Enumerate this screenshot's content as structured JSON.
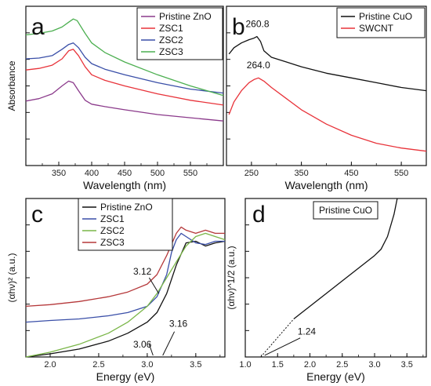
{
  "chart_data": [
    {
      "id": "a",
      "type": "line",
      "panel_label": "a",
      "xlabel": "Wavelength (nm)",
      "ylabel": "Absorbance",
      "xlim": [
        300,
        600
      ],
      "ylim": [
        0,
        1
      ],
      "xticks": [
        350,
        400,
        450,
        500,
        550
      ],
      "y_tick_labels_shown": false,
      "legend_position": "top-right",
      "series": [
        {
          "name": "Pristine ZnO",
          "color": "#8b3a8b",
          "x": [
            300,
            320,
            340,
            355,
            365,
            372,
            380,
            390,
            400,
            420,
            450,
            500,
            550,
            600
          ],
          "y": [
            0.405,
            0.42,
            0.45,
            0.5,
            0.53,
            0.52,
            0.47,
            0.41,
            0.385,
            0.37,
            0.35,
            0.32,
            0.3,
            0.28
          ]
        },
        {
          "name": "ZSC1",
          "color": "#e8333a",
          "x": [
            300,
            320,
            340,
            355,
            365,
            372,
            380,
            390,
            400,
            420,
            450,
            500,
            550,
            600
          ],
          "y": [
            0.6,
            0.61,
            0.63,
            0.67,
            0.72,
            0.73,
            0.69,
            0.62,
            0.57,
            0.535,
            0.5,
            0.45,
            0.41,
            0.38
          ]
        },
        {
          "name": "ZSC2",
          "color": "#3a4fa8",
          "x": [
            300,
            320,
            340,
            355,
            365,
            372,
            380,
            390,
            400,
            420,
            450,
            500,
            550,
            600
          ],
          "y": [
            0.67,
            0.675,
            0.69,
            0.73,
            0.76,
            0.77,
            0.74,
            0.68,
            0.64,
            0.605,
            0.57,
            0.52,
            0.48,
            0.455
          ]
        },
        {
          "name": "ZSC3",
          "color": "#4caf50",
          "x": [
            300,
            320,
            340,
            355,
            365,
            372,
            378,
            390,
            400,
            420,
            450,
            500,
            550,
            600
          ],
          "y": [
            0.82,
            0.83,
            0.845,
            0.87,
            0.9,
            0.92,
            0.91,
            0.83,
            0.77,
            0.71,
            0.65,
            0.57,
            0.5,
            0.44
          ]
        }
      ]
    },
    {
      "id": "b",
      "type": "line",
      "panel_label": "b",
      "xlabel": "Wavelength (nm)",
      "ylabel": "",
      "xlim": [
        200,
        600
      ],
      "ylim": [
        0,
        1
      ],
      "xticks": [
        250,
        350,
        450,
        550
      ],
      "y_tick_labels_shown": false,
      "legend_position": "top-right",
      "annotations": [
        {
          "text": "260.8",
          "x": 262,
          "y": 0.87
        },
        {
          "text": "264.0",
          "x": 264,
          "y": 0.61
        }
      ],
      "series": [
        {
          "name": "Pristine CuO",
          "color": "#111111",
          "x": [
            205,
            215,
            230,
            245,
            255,
            261,
            268,
            275,
            290,
            320,
            350,
            400,
            450,
            500,
            550,
            600
          ],
          "y": [
            0.7,
            0.74,
            0.77,
            0.79,
            0.8,
            0.81,
            0.78,
            0.72,
            0.68,
            0.65,
            0.62,
            0.58,
            0.55,
            0.52,
            0.49,
            0.47
          ]
        },
        {
          "name": "SWCNT",
          "color": "#e8333a",
          "x": [
            205,
            215,
            230,
            245,
            255,
            264,
            275,
            290,
            320,
            350,
            400,
            450,
            500,
            550,
            600
          ],
          "y": [
            0.32,
            0.4,
            0.47,
            0.52,
            0.54,
            0.55,
            0.53,
            0.49,
            0.42,
            0.35,
            0.26,
            0.19,
            0.14,
            0.11,
            0.09
          ]
        }
      ]
    },
    {
      "id": "c",
      "type": "line",
      "panel_label": "c",
      "xlabel": "Energy (eV)",
      "ylabel": "(αhν)² (a.u.)",
      "xlim": [
        1.75,
        3.8
      ],
      "ylim": [
        0,
        1
      ],
      "xticks": [
        2.0,
        2.5,
        3.0,
        3.5
      ],
      "y_tick_labels_shown": false,
      "legend_position": "top-left",
      "annotations": [
        {
          "text": "3.12",
          "x": 2.95,
          "y": 0.52
        },
        {
          "text": "3.06",
          "x": 2.95,
          "y": 0.06
        },
        {
          "text": "3.16",
          "x": 3.32,
          "y": 0.19
        }
      ],
      "series": [
        {
          "name": "Pristine ZnO",
          "color": "#111111",
          "x": [
            1.75,
            2.0,
            2.3,
            2.6,
            2.8,
            3.0,
            3.1,
            3.2,
            3.3,
            3.4,
            3.5,
            3.6,
            3.7,
            3.8
          ],
          "y": [
            0.0,
            0.02,
            0.05,
            0.1,
            0.15,
            0.22,
            0.28,
            0.4,
            0.58,
            0.72,
            0.73,
            0.7,
            0.72,
            0.73
          ]
        },
        {
          "name": "ZSC1",
          "color": "#3a4fa8",
          "x": [
            1.75,
            2.0,
            2.3,
            2.6,
            2.8,
            3.0,
            3.1,
            3.2,
            3.25,
            3.3,
            3.35,
            3.4,
            3.5,
            3.6,
            3.7,
            3.8
          ],
          "y": [
            0.22,
            0.23,
            0.24,
            0.26,
            0.28,
            0.32,
            0.38,
            0.52,
            0.66,
            0.74,
            0.78,
            0.76,
            0.72,
            0.71,
            0.73,
            0.73
          ]
        },
        {
          "name": "ZSC2",
          "color": "#7ab648",
          "x": [
            1.75,
            2.0,
            2.3,
            2.6,
            2.8,
            3.0,
            3.1,
            3.2,
            3.3,
            3.4,
            3.5,
            3.6,
            3.7,
            3.8
          ],
          "y": [
            0.0,
            0.03,
            0.08,
            0.15,
            0.22,
            0.32,
            0.4,
            0.5,
            0.6,
            0.7,
            0.76,
            0.78,
            0.76,
            0.74
          ]
        },
        {
          "name": "ZSC3",
          "color": "#b5383a",
          "x": [
            1.75,
            2.0,
            2.3,
            2.6,
            2.8,
            3.0,
            3.1,
            3.2,
            3.3,
            3.35,
            3.4,
            3.5,
            3.6,
            3.7,
            3.8
          ],
          "y": [
            0.32,
            0.33,
            0.35,
            0.38,
            0.41,
            0.46,
            0.52,
            0.64,
            0.78,
            0.82,
            0.8,
            0.78,
            0.8,
            0.78,
            0.78
          ]
        }
      ]
    },
    {
      "id": "d",
      "type": "line",
      "panel_label": "d",
      "xlabel": "Energy (eV)",
      "ylabel": "(αhν)^1/2 (a.u.)",
      "xlim": [
        1.0,
        3.8
      ],
      "ylim": [
        0,
        1
      ],
      "xticks": [
        1.0,
        1.5,
        2.0,
        2.5,
        3.0,
        3.5
      ],
      "y_tick_labels_shown": false,
      "legend_position": "top-center",
      "legend_boxed": true,
      "annotations": [
        {
          "text": "1.24",
          "x": 1.95,
          "y": 0.14
        }
      ],
      "series": [
        {
          "name": "Pristine CuO",
          "color": "#111111",
          "x": [
            1.75,
            2.0,
            2.25,
            2.5,
            2.75,
            3.0,
            3.1,
            3.2,
            3.3,
            3.35
          ],
          "y": [
            0.24,
            0.32,
            0.4,
            0.48,
            0.56,
            0.64,
            0.68,
            0.76,
            0.9,
            1.0
          ]
        }
      ],
      "fit_line": {
        "x": [
          1.24,
          1.75
        ],
        "y": [
          0.0,
          0.24
        ],
        "style": "dotted"
      }
    }
  ],
  "panel_labels": {
    "a": "a",
    "b": "b",
    "c": "c",
    "d": "d"
  }
}
